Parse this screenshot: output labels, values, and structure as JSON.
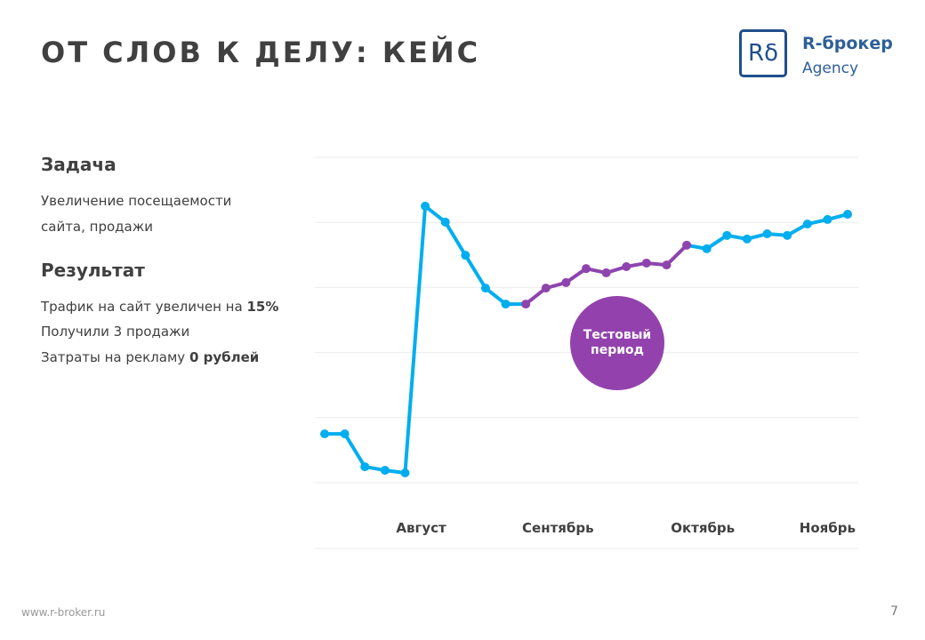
{
  "title": "ОТ СЛОВ К ДЕЛУ: КЕЙС",
  "logo": {
    "mark": "Rδ",
    "name": "R-брокер",
    "sub": "Agency",
    "color": "#1f4e8c"
  },
  "task": {
    "heading": "Задача",
    "lines": [
      "Увеличение посещаемости",
      "сайта, продажи"
    ]
  },
  "result": {
    "heading": "Результат",
    "line1_text": "Трафик на сайт увеличен на ",
    "line1_bold": "15%",
    "line2": "Получили 3 продажи",
    "line3_text": "Затраты на рекламу ",
    "line3_bold": "0 рублей"
  },
  "badge": {
    "line1": "Тестовый",
    "line2": "период",
    "color": "#9342ad"
  },
  "footer": {
    "url": "www.r-broker.ru",
    "page": "7"
  },
  "chart_data": {
    "type": "line",
    "title": "",
    "xlabel": "",
    "ylabel": "",
    "ylim": [
      0,
      100
    ],
    "grid": true,
    "x": [
      0,
      1,
      2,
      3,
      4,
      5,
      6,
      7,
      8,
      9,
      10,
      11,
      12,
      13,
      14,
      15,
      16,
      17,
      18,
      19,
      20,
      21,
      22,
      23,
      24,
      25,
      26
    ],
    "values": [
      15,
      15,
      4.9,
      3.8,
      3,
      85,
      80.1,
      69.9,
      59.8,
      54.9,
      54.9,
      59.8,
      61.5,
      65.8,
      64.5,
      66.4,
      67.5,
      66.9,
      73,
      71.9,
      76,
      74.9,
      76.5,
      76,
      79.5,
      80.9,
      82.5
    ],
    "highlight_range": [
      10,
      18
    ],
    "series_color": "#00aeef",
    "highlight_color": "#8e44ad",
    "month_labels": [
      {
        "label": "Август",
        "at": 4.8
      },
      {
        "label": "Сентябрь",
        "at": 11.6
      },
      {
        "label": "Октябрь",
        "at": 18.8
      },
      {
        "label": "Ноябрь",
        "at": 25
      }
    ]
  }
}
